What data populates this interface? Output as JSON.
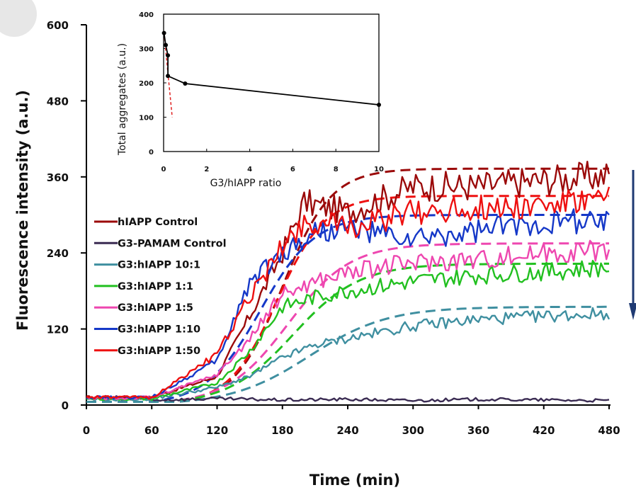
{
  "chart_data": [
    {
      "type": "line",
      "xlabel": "Time (min)",
      "ylabel": "Fluorescence intensity (a.u.)",
      "xlim": [
        0,
        480
      ],
      "ylim": [
        0,
        600
      ],
      "x_ticks": [
        "0",
        "60",
        "120",
        "180",
        "240",
        "300",
        "360",
        "420",
        "480"
      ],
      "y_ticks": [
        "0",
        "120",
        "240",
        "360",
        "480",
        "600"
      ],
      "grid": false,
      "legend_position": "middle-left",
      "annotation": "downward arrow at right edge from about 370 to 135",
      "series": [
        {
          "name": "hIAPP Control",
          "color": "#9b0a0a",
          "x": [
            0,
            60,
            120,
            150,
            180,
            200,
            240,
            300,
            360,
            420,
            480
          ],
          "y": [
            12,
            12,
            45,
            140,
            240,
            320,
            305,
            345,
            345,
            355,
            362
          ]
        },
        {
          "name": "G3-PAMAM Control",
          "color": "#3a2b52",
          "x": [
            0,
            60,
            120,
            180,
            240,
            300,
            360,
            420,
            480
          ],
          "y": [
            10,
            8,
            10,
            8,
            9,
            7,
            9,
            8,
            7
          ]
        },
        {
          "name": "G3:hIAPP 10:1",
          "color": "#3f8fa0",
          "x": [
            0,
            60,
            120,
            150,
            180,
            210,
            240,
            300,
            360,
            420,
            480
          ],
          "y": [
            8,
            10,
            28,
            45,
            75,
            95,
            105,
            125,
            135,
            140,
            145
          ]
        },
        {
          "name": "G3:hIAPP 1:1",
          "color": "#22c020",
          "x": [
            0,
            60,
            120,
            150,
            180,
            210,
            240,
            300,
            360,
            420,
            480
          ],
          "y": [
            10,
            10,
            35,
            85,
            155,
            170,
            180,
            195,
            205,
            210,
            218
          ]
        },
        {
          "name": "G3:hIAPP 1:5",
          "color": "#ee47b0",
          "x": [
            0,
            60,
            120,
            150,
            180,
            210,
            240,
            300,
            360,
            420,
            480
          ],
          "y": [
            10,
            12,
            48,
            105,
            175,
            195,
            210,
            225,
            230,
            240,
            245
          ]
        },
        {
          "name": "G3:hIAPP 1:10",
          "color": "#1538c8",
          "x": [
            0,
            60,
            120,
            150,
            180,
            210,
            240,
            300,
            360,
            420,
            480
          ],
          "y": [
            12,
            12,
            70,
            195,
            240,
            275,
            280,
            260,
            275,
            290,
            290
          ]
        },
        {
          "name": "G3:hIAPP 1:50",
          "color": "#ee1010",
          "x": [
            0,
            60,
            120,
            150,
            180,
            200,
            240,
            300,
            360,
            420,
            480
          ],
          "y": [
            12,
            12,
            80,
            170,
            250,
            290,
            280,
            305,
            310,
            315,
            322
          ]
        }
      ],
      "fits": [
        {
          "series": "hIAPP Control",
          "color": "#9b0a0a",
          "plateau": 373,
          "t_half": 180,
          "k": 0.045
        },
        {
          "series": "G3:hIAPP 1:50",
          "color": "#ee1010",
          "plateau": 330,
          "t_half": 175,
          "k": 0.045
        },
        {
          "series": "G3:hIAPP 1:10",
          "color": "#1538c8",
          "plateau": 300,
          "t_half": 160,
          "k": 0.04
        },
        {
          "series": "G3:hIAPP 1:5",
          "color": "#ee47b0",
          "plateau": 255,
          "t_half": 185,
          "k": 0.035
        },
        {
          "series": "G3:hIAPP 1:1",
          "color": "#22c020",
          "plateau": 223,
          "t_half": 190,
          "k": 0.033
        },
        {
          "series": "G3:hIAPP 10:1",
          "color": "#3f8fa0",
          "plateau": 155,
          "t_half": 205,
          "k": 0.028
        }
      ]
    },
    {
      "type": "line",
      "xlabel": "G3/hIAPP ratio",
      "ylabel": "Total aggregates (a.u.)",
      "xlim": [
        0,
        10
      ],
      "ylim": [
        0,
        400
      ],
      "x_ticks": [
        "0",
        "2",
        "4",
        "6",
        "8",
        "10"
      ],
      "y_ticks": [
        "0",
        "100",
        "200",
        "300",
        "400"
      ],
      "series": [
        {
          "color": "#000000",
          "x": [
            0.02,
            0.1,
            0.2,
            0.2,
            1,
            10
          ],
          "y": [
            345,
            310,
            280,
            220,
            198,
            136
          ]
        }
      ],
      "trend": {
        "color": "#e02020",
        "x": [
          0.02,
          0.4
        ],
        "y": [
          345,
          100
        ]
      }
    }
  ]
}
